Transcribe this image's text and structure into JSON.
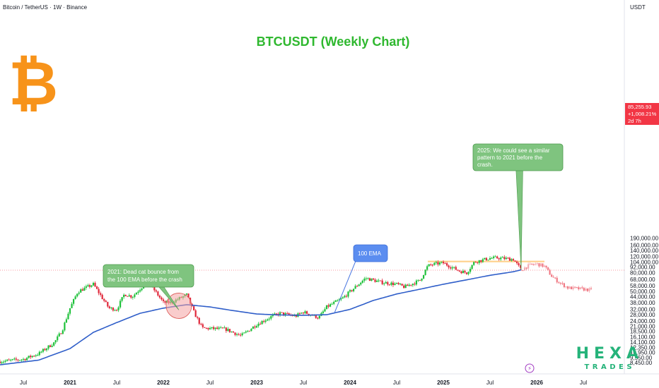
{
  "symbol_header": "Bitcoin / TetherUS · 1W · Binance",
  "currency": "USDT",
  "title": "BTCUSDT (Weekly Chart)",
  "colors": {
    "up": "#26a69a",
    "down": "#ef5350",
    "up_bright": "#1ec13a",
    "down_bright": "#e0273a",
    "ema": "#2f5ec9",
    "resistance": "#ffcc80",
    "title": "#2fb82f",
    "logo": "#f7931a",
    "callout_fill": "#7fc47f",
    "callout_stroke": "#4c9a4c",
    "ema_label_fill": "#5b8df0",
    "current_price": "#f23645"
  },
  "current_price": {
    "price": "85,255.93",
    "change": "+1,008.21%",
    "countdown": "2d 7h",
    "value": 85255.93
  },
  "watermark": {
    "top": "HEXA",
    "bottom": "TRADES"
  },
  "chart_data": {
    "type": "candlestick",
    "y_scale": "log",
    "y_ticks": [
      8450,
      9550,
      10950,
      12350,
      14100,
      16100,
      18500,
      21000,
      24000,
      28000,
      32000,
      38000,
      44000,
      50000,
      58000,
      68000,
      80000,
      92000,
      104000,
      120000,
      140000,
      160000,
      190000
    ],
    "y_tick_labels": [
      "8,450.00",
      "9,550.00",
      "10,950.00",
      "12,350.00",
      "14,100.00",
      "16,100.00",
      "18,500.00",
      "21,000.00",
      "24,000.00",
      "28,000.00",
      "32,000.00",
      "38,000.00",
      "44,000.00",
      "50,000.00",
      "58,000.00",
      "68,000.00",
      "80,000.00",
      "92,000.00",
      "104,000.00",
      "120,000.00",
      "140,000.00",
      "160,000.00",
      "190,000.00"
    ],
    "x_ticks": [
      {
        "label": "Jul",
        "date": "2020-07"
      },
      {
        "label": "2021",
        "date": "2021-01"
      },
      {
        "label": "Jul",
        "date": "2021-07"
      },
      {
        "label": "2022",
        "date": "2022-01"
      },
      {
        "label": "Jul",
        "date": "2022-07"
      },
      {
        "label": "2023",
        "date": "2023-01"
      },
      {
        "label": "Jul",
        "date": "2023-07"
      },
      {
        "label": "2024",
        "date": "2024-01"
      },
      {
        "label": "Jul",
        "date": "2024-07"
      },
      {
        "label": "2025",
        "date": "2025-01"
      },
      {
        "label": "Jul",
        "date": "2025-07"
      },
      {
        "label": "2026",
        "date": "2026-01"
      },
      {
        "label": "Jul",
        "date": "2026-07"
      }
    ],
    "price_path": [
      [
        "2020-04",
        8700
      ],
      [
        "2020-07",
        9200
      ],
      [
        "2020-09",
        10600
      ],
      [
        "2020-11",
        14000
      ],
      [
        "2020-12",
        19000
      ],
      [
        "2021-01",
        33000
      ],
      [
        "2021-02",
        50000
      ],
      [
        "2021-04",
        60000
      ],
      [
        "2021-06",
        33000
      ],
      [
        "2021-07",
        32000
      ],
      [
        "2021-08",
        47000
      ],
      [
        "2021-09",
        44000
      ],
      [
        "2021-11",
        65000
      ],
      [
        "2022-01",
        38000
      ],
      [
        "2022-02",
        38000
      ],
      [
        "2022-04",
        46000
      ],
      [
        "2022-05",
        29000
      ],
      [
        "2022-06",
        20000
      ],
      [
        "2022-09",
        19500
      ],
      [
        "2022-11",
        16500
      ],
      [
        "2023-01",
        22000
      ],
      [
        "2023-03",
        27000
      ],
      [
        "2023-04",
        29000
      ],
      [
        "2023-06",
        27000
      ],
      [
        "2023-07",
        30000
      ],
      [
        "2023-09",
        26000
      ],
      [
        "2023-10",
        34000
      ],
      [
        "2023-12",
        42000
      ],
      [
        "2024-03",
        70000
      ],
      [
        "2024-05",
        63000
      ],
      [
        "2024-07",
        60000
      ],
      [
        "2024-08",
        56000
      ],
      [
        "2024-10",
        66000
      ],
      [
        "2024-11",
        95000
      ],
      [
        "2024-12",
        100000
      ],
      [
        "2025-01",
        102000
      ],
      [
        "2025-03",
        84000
      ],
      [
        "2025-04",
        80000
      ],
      [
        "2025-05",
        105000
      ],
      [
        "2025-07",
        115000
      ],
      [
        "2025-08",
        116000
      ],
      [
        "2025-10",
        112000
      ],
      [
        "2025-11",
        86000
      ]
    ],
    "projection_path": [
      [
        "2025-11",
        86000
      ],
      [
        "2025-12",
        96000
      ],
      [
        "2026-01",
        100000
      ],
      [
        "2026-02",
        94000
      ],
      [
        "2026-03",
        72000
      ],
      [
        "2026-04",
        62000
      ],
      [
        "2026-05",
        55000
      ],
      [
        "2026-06",
        54000
      ],
      [
        "2026-07",
        53000
      ],
      [
        "2026-08",
        52000
      ]
    ],
    "ema_100": [
      [
        "2020-04",
        8000
      ],
      [
        "2020-09",
        9000
      ],
      [
        "2021-01",
        12000
      ],
      [
        "2021-04",
        18000
      ],
      [
        "2021-07",
        23000
      ],
      [
        "2021-10",
        29000
      ],
      [
        "2022-01",
        33000
      ],
      [
        "2022-04",
        36000
      ],
      [
        "2022-07",
        34000
      ],
      [
        "2022-10",
        31000
      ],
      [
        "2023-01",
        28500
      ],
      [
        "2023-04",
        27800
      ],
      [
        "2023-07",
        27600
      ],
      [
        "2023-10",
        28000
      ],
      [
        "2024-01",
        32000
      ],
      [
        "2024-04",
        40000
      ],
      [
        "2024-07",
        47000
      ],
      [
        "2024-10",
        53000
      ],
      [
        "2025-01",
        60000
      ],
      [
        "2025-04",
        67000
      ],
      [
        "2025-07",
        75000
      ],
      [
        "2025-10",
        82000
      ],
      [
        "2025-11",
        86000
      ]
    ],
    "resistance_zone": {
      "from": "2024-11",
      "to": "2026-02",
      "low": 104000,
      "high": 108000
    },
    "ema_label": "100 EMA",
    "annotations": [
      {
        "text": "2021:  Dead cat bounce from the 100 EMA before the crash",
        "lines": [
          "2021:  Dead cat bounce from",
          "the 100 EMA before the crash"
        ],
        "target_date": "2022-03",
        "target_price": 35000
      },
      {
        "text": "2025: We could see a similar pattern to 2021 before the crash.",
        "lines": [
          "2025: We could see a similar",
          "pattern to 2021 before the",
          "crash."
        ],
        "target_date": "2025-11",
        "target_price": 86000
      }
    ]
  }
}
